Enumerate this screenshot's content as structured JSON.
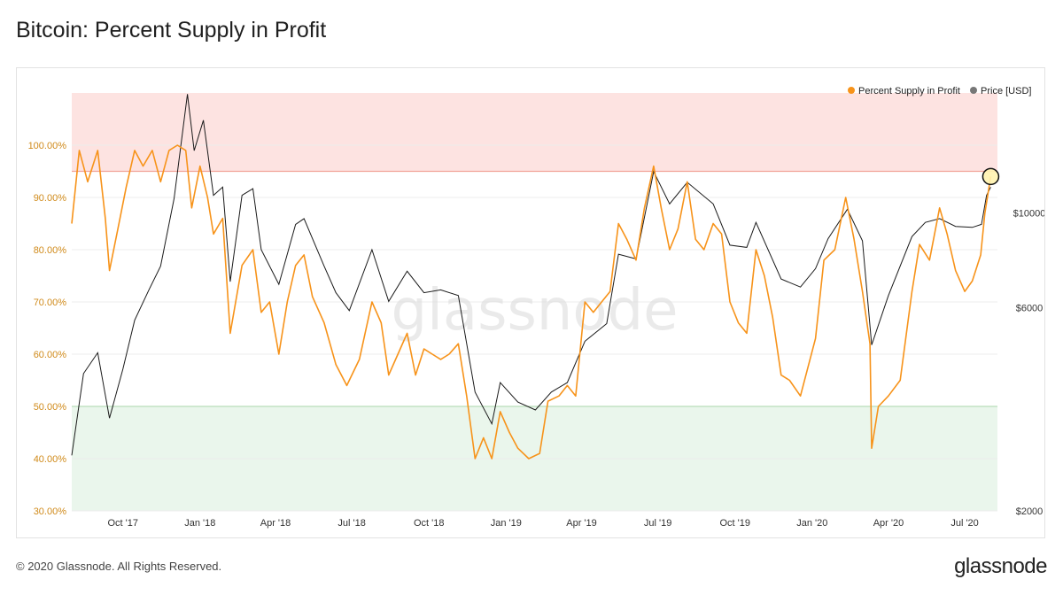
{
  "title": "Bitcoin: Percent Supply in Profit",
  "footer": {
    "copyright": "© 2020 Glassnode. All Rights Reserved.",
    "logo": "glassnode"
  },
  "watermark": "glassnode",
  "colors": {
    "profit": "#f7931a",
    "price": "#1a1a1a",
    "red_zone": "#fde3e1",
    "red_line": "#f2a49a",
    "green_zone": "#eaf6ec",
    "green_line": "#b9deb9"
  },
  "chart_data": {
    "type": "line",
    "title": "Bitcoin: Percent Supply in Profit",
    "legend": {
      "placement": "top-right",
      "items": [
        "Percent Supply in Profit",
        "Price [USD]"
      ]
    },
    "x_ticks": [
      "Oct '17",
      "Jan '18",
      "Apr '18",
      "Jul '18",
      "Oct '18",
      "Jan '19",
      "Apr '19",
      "Jul '19",
      "Oct '19",
      "Jan '20",
      "Apr '20",
      "Jul '20"
    ],
    "y_left": {
      "ticks": [
        "30.00%",
        "40.00%",
        "50.00%",
        "60.00%",
        "70.00%",
        "80.00%",
        "90.00%",
        "100.00%"
      ],
      "range": [
        30,
        110
      ]
    },
    "y_right": {
      "ticks": [
        "$2000",
        "$6000",
        "$10000"
      ],
      "scale": "log",
      "range": [
        2000,
        20000
      ]
    },
    "zones": {
      "upper_threshold": 95,
      "lower_threshold": 50
    },
    "highlight_point": {
      "date": "2020-08-01",
      "value": 94
    },
    "series": [
      {
        "name": "Percent Supply in Profit",
        "axis": "left",
        "points": [
          [
            "2017-08-01",
            85
          ],
          [
            "2017-08-10",
            99
          ],
          [
            "2017-08-20",
            93
          ],
          [
            "2017-09-01",
            99
          ],
          [
            "2017-09-10",
            86
          ],
          [
            "2017-09-15",
            76
          ],
          [
            "2017-09-25",
            84
          ],
          [
            "2017-10-05",
            92
          ],
          [
            "2017-10-15",
            99
          ],
          [
            "2017-10-25",
            96
          ],
          [
            "2017-11-05",
            99
          ],
          [
            "2017-11-15",
            93
          ],
          [
            "2017-11-25",
            99
          ],
          [
            "2017-12-05",
            100
          ],
          [
            "2017-12-15",
            99
          ],
          [
            "2017-12-22",
            88
          ],
          [
            "2018-01-01",
            96
          ],
          [
            "2018-01-10",
            90
          ],
          [
            "2018-01-17",
            83
          ],
          [
            "2018-01-28",
            86
          ],
          [
            "2018-02-06",
            64
          ],
          [
            "2018-02-20",
            77
          ],
          [
            "2018-03-05",
            80
          ],
          [
            "2018-03-15",
            68
          ],
          [
            "2018-03-25",
            70
          ],
          [
            "2018-04-05",
            60
          ],
          [
            "2018-04-15",
            70
          ],
          [
            "2018-04-25",
            77
          ],
          [
            "2018-05-05",
            79
          ],
          [
            "2018-05-15",
            71
          ],
          [
            "2018-05-29",
            66
          ],
          [
            "2018-06-12",
            58
          ],
          [
            "2018-06-25",
            54
          ],
          [
            "2018-07-10",
            59
          ],
          [
            "2018-07-25",
            70
          ],
          [
            "2018-08-05",
            66
          ],
          [
            "2018-08-14",
            56
          ],
          [
            "2018-08-25",
            60
          ],
          [
            "2018-09-05",
            64
          ],
          [
            "2018-09-15",
            56
          ],
          [
            "2018-09-25",
            61
          ],
          [
            "2018-10-05",
            60
          ],
          [
            "2018-10-15",
            59
          ],
          [
            "2018-10-25",
            60
          ],
          [
            "2018-11-05",
            62
          ],
          [
            "2018-11-15",
            52
          ],
          [
            "2018-11-25",
            40
          ],
          [
            "2018-12-05",
            44
          ],
          [
            "2018-12-15",
            40
          ],
          [
            "2018-12-25",
            49
          ],
          [
            "2019-01-05",
            45
          ],
          [
            "2019-01-15",
            42
          ],
          [
            "2019-01-28",
            40
          ],
          [
            "2019-02-10",
            41
          ],
          [
            "2019-02-20",
            51
          ],
          [
            "2019-03-05",
            52
          ],
          [
            "2019-03-15",
            54
          ],
          [
            "2019-03-25",
            52
          ],
          [
            "2019-04-05",
            70
          ],
          [
            "2019-04-15",
            68
          ],
          [
            "2019-04-25",
            70
          ],
          [
            "2019-05-05",
            72
          ],
          [
            "2019-05-15",
            85
          ],
          [
            "2019-05-25",
            82
          ],
          [
            "2019-06-05",
            78
          ],
          [
            "2019-06-15",
            88
          ],
          [
            "2019-06-26",
            96
          ],
          [
            "2019-07-05",
            88
          ],
          [
            "2019-07-15",
            80
          ],
          [
            "2019-07-25",
            84
          ],
          [
            "2019-08-05",
            93
          ],
          [
            "2019-08-15",
            82
          ],
          [
            "2019-08-25",
            80
          ],
          [
            "2019-09-05",
            85
          ],
          [
            "2019-09-15",
            83
          ],
          [
            "2019-09-25",
            70
          ],
          [
            "2019-10-05",
            66
          ],
          [
            "2019-10-15",
            64
          ],
          [
            "2019-10-26",
            80
          ],
          [
            "2019-11-05",
            75
          ],
          [
            "2019-11-15",
            67
          ],
          [
            "2019-11-25",
            56
          ],
          [
            "2019-12-05",
            55
          ],
          [
            "2019-12-18",
            52
          ],
          [
            "2020-01-05",
            63
          ],
          [
            "2020-01-15",
            78
          ],
          [
            "2020-01-28",
            80
          ],
          [
            "2020-02-10",
            90
          ],
          [
            "2020-02-20",
            82
          ],
          [
            "2020-03-01",
            72
          ],
          [
            "2020-03-10",
            62
          ],
          [
            "2020-03-12",
            42
          ],
          [
            "2020-03-20",
            50
          ],
          [
            "2020-04-01",
            52
          ],
          [
            "2020-04-15",
            55
          ],
          [
            "2020-04-29",
            72
          ],
          [
            "2020-05-08",
            81
          ],
          [
            "2020-05-20",
            78
          ],
          [
            "2020-06-01",
            88
          ],
          [
            "2020-06-10",
            83
          ],
          [
            "2020-06-20",
            76
          ],
          [
            "2020-07-01",
            72
          ],
          [
            "2020-07-10",
            74
          ],
          [
            "2020-07-20",
            79
          ],
          [
            "2020-07-25",
            87
          ],
          [
            "2020-08-01",
            94
          ]
        ]
      },
      {
        "name": "Price [USD]",
        "axis": "right",
        "points": [
          [
            "2017-08-01",
            2700
          ],
          [
            "2017-08-15",
            4200
          ],
          [
            "2017-09-01",
            4700
          ],
          [
            "2017-09-15",
            3300
          ],
          [
            "2017-10-01",
            4300
          ],
          [
            "2017-10-15",
            5600
          ],
          [
            "2017-11-01",
            6600
          ],
          [
            "2017-11-15",
            7500
          ],
          [
            "2017-12-01",
            10800
          ],
          [
            "2017-12-17",
            19000
          ],
          [
            "2017-12-25",
            14000
          ],
          [
            "2018-01-05",
            16500
          ],
          [
            "2018-01-17",
            11000
          ],
          [
            "2018-01-28",
            11500
          ],
          [
            "2018-02-06",
            6900
          ],
          [
            "2018-02-20",
            11000
          ],
          [
            "2018-03-05",
            11400
          ],
          [
            "2018-03-15",
            8200
          ],
          [
            "2018-04-05",
            6800
          ],
          [
            "2018-04-25",
            9400
          ],
          [
            "2018-05-05",
            9700
          ],
          [
            "2018-05-29",
            7500
          ],
          [
            "2018-06-12",
            6500
          ],
          [
            "2018-06-28",
            5900
          ],
          [
            "2018-07-25",
            8200
          ],
          [
            "2018-08-14",
            6200
          ],
          [
            "2018-09-05",
            7300
          ],
          [
            "2018-09-25",
            6500
          ],
          [
            "2018-10-15",
            6600
          ],
          [
            "2018-11-05",
            6400
          ],
          [
            "2018-11-25",
            3800
          ],
          [
            "2018-12-15",
            3200
          ],
          [
            "2018-12-25",
            4000
          ],
          [
            "2019-01-15",
            3600
          ],
          [
            "2019-02-05",
            3450
          ],
          [
            "2019-02-24",
            3800
          ],
          [
            "2019-03-15",
            4000
          ],
          [
            "2019-04-05",
            5000
          ],
          [
            "2019-05-01",
            5500
          ],
          [
            "2019-05-15",
            8000
          ],
          [
            "2019-06-05",
            7800
          ],
          [
            "2019-06-26",
            12500
          ],
          [
            "2019-07-15",
            10500
          ],
          [
            "2019-08-05",
            11800
          ],
          [
            "2019-09-05",
            10500
          ],
          [
            "2019-09-25",
            8400
          ],
          [
            "2019-10-15",
            8300
          ],
          [
            "2019-10-26",
            9500
          ],
          [
            "2019-11-25",
            7000
          ],
          [
            "2019-12-18",
            6700
          ],
          [
            "2020-01-05",
            7400
          ],
          [
            "2020-01-20",
            8700
          ],
          [
            "2020-02-12",
            10200
          ],
          [
            "2020-03-01",
            8600
          ],
          [
            "2020-03-12",
            4900
          ],
          [
            "2020-04-01",
            6400
          ],
          [
            "2020-04-29",
            8800
          ],
          [
            "2020-05-15",
            9500
          ],
          [
            "2020-06-01",
            9700
          ],
          [
            "2020-06-20",
            9300
          ],
          [
            "2020-07-10",
            9250
          ],
          [
            "2020-07-21",
            9400
          ],
          [
            "2020-07-27",
            11000
          ],
          [
            "2020-08-01",
            11500
          ]
        ]
      }
    ]
  }
}
